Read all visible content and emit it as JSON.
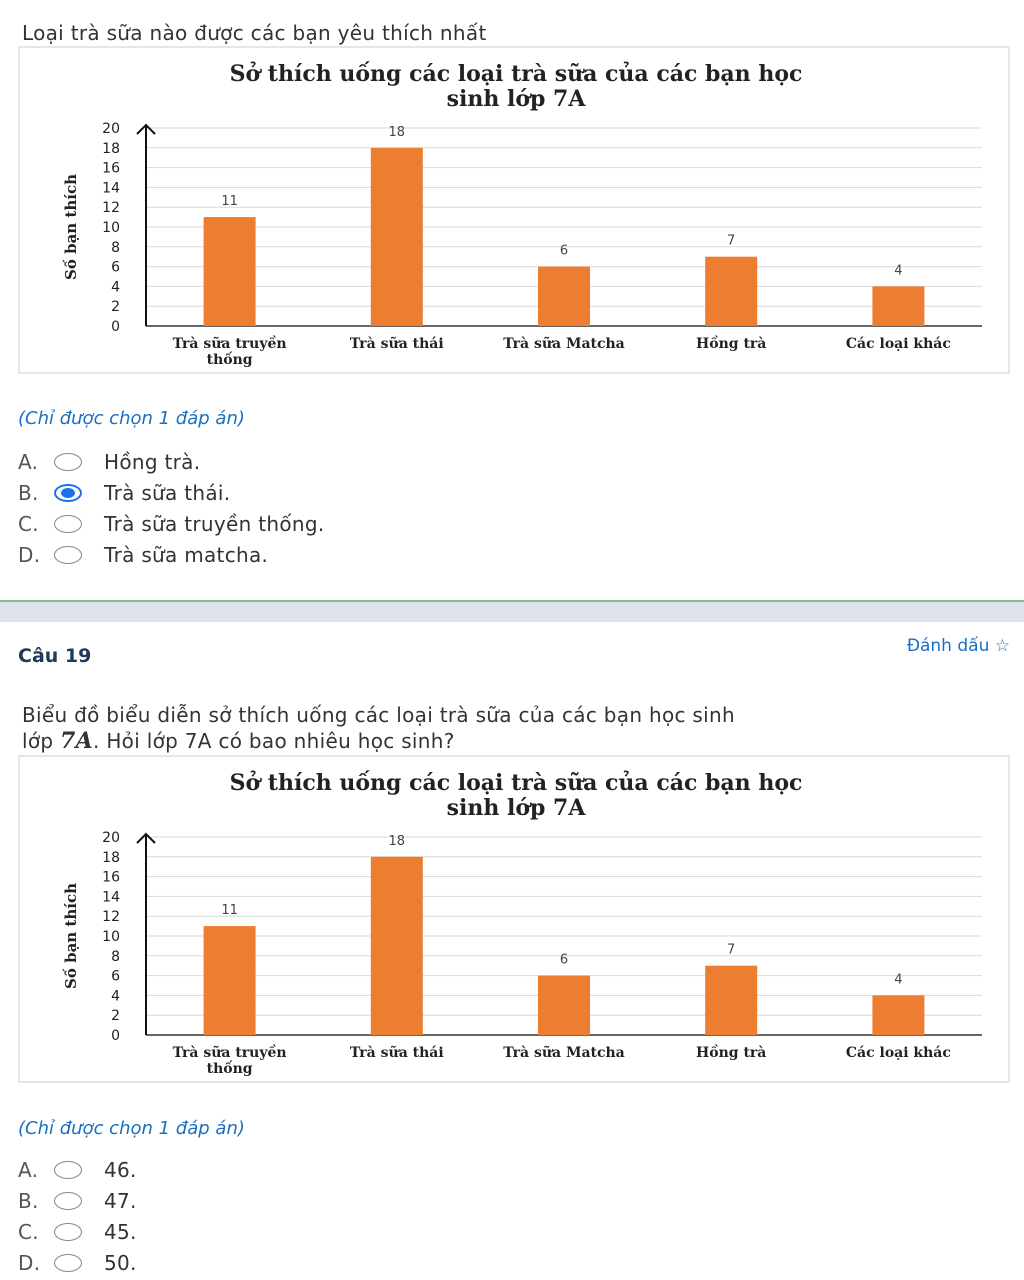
{
  "question_prev": {
    "text": "Loại trà sữa nào được các bạn yêu thích nhất",
    "hint": "(Chỉ được chọn 1 đáp án)",
    "options": [
      {
        "letter": "A.",
        "label": "Hồng trà.",
        "selected": false
      },
      {
        "letter": "B.",
        "label": "Trà sữa thái.",
        "selected": true
      },
      {
        "letter": "C.",
        "label": "Trà sữa truyền thống.",
        "selected": false
      },
      {
        "letter": "D.",
        "label": "Trà sữa matcha.",
        "selected": false
      }
    ]
  },
  "question_19": {
    "number_label": "Câu 19",
    "flag_label": "Đánh dấu",
    "text_part1": "Biểu đồ biểu diễn sở thích uống các loại trà sữa của các bạn học sinh",
    "text_part2_prefix": "lớp ",
    "text_part2_class": "7A",
    "text_part2_suffix": ". Hỏi lớp 7A có bao nhiêu học sinh?",
    "hint": "(Chỉ được chọn 1 đáp án)",
    "options": [
      {
        "letter": "A.",
        "label": "46.",
        "selected": false
      },
      {
        "letter": "B.",
        "label": "47.",
        "selected": false
      },
      {
        "letter": "C.",
        "label": "45.",
        "selected": false
      },
      {
        "letter": "D.",
        "label": "50.",
        "selected": false
      }
    ]
  },
  "chart_data": [
    {
      "type": "bar",
      "title_line1": "Sở thích uống các loại trà sữa của các bạn học",
      "title_line2": "sinh lớp 7A",
      "ylabel": "Số bạn thích",
      "xlabel": "",
      "categories": [
        "Trà sữa truyền thống",
        "Trà sữa thái",
        "Trà sữa Matcha",
        "Hồng trà",
        "Các loại khác"
      ],
      "category_lines": [
        [
          "Trà sữa truyền",
          "thống"
        ],
        [
          "Trà sữa thái"
        ],
        [
          "Trà sữa Matcha"
        ],
        [
          "Hồng trà"
        ],
        [
          "Các loại khác"
        ]
      ],
      "values": [
        11,
        18,
        6,
        7,
        4
      ],
      "ylim": [
        0,
        20
      ],
      "yticks": [
        0,
        2,
        4,
        6,
        8,
        10,
        12,
        14,
        16,
        18,
        20
      ],
      "bar_color": "#ed7d31",
      "grid": true
    },
    {
      "type": "bar",
      "title_line1": "Sở thích uống các loại trà sữa của các bạn học",
      "title_line2": "sinh lớp 7A",
      "ylabel": "Số bạn thích",
      "xlabel": "",
      "categories": [
        "Trà sữa truyền thống",
        "Trà sữa thái",
        "Trà sữa Matcha",
        "Hồng trà",
        "Các loại khác"
      ],
      "category_lines": [
        [
          "Trà sữa truyền",
          "thống"
        ],
        [
          "Trà sữa thái"
        ],
        [
          "Trà sữa Matcha"
        ],
        [
          "Hồng trà"
        ],
        [
          "Các loại khác"
        ]
      ],
      "values": [
        11,
        18,
        6,
        7,
        4
      ],
      "ylim": [
        0,
        20
      ],
      "yticks": [
        0,
        2,
        4,
        6,
        8,
        10,
        12,
        14,
        16,
        18,
        20
      ],
      "bar_color": "#ed7d31",
      "grid": true
    }
  ],
  "colors": {
    "accent": "#1a73e8",
    "hint": "#1a6fc2",
    "bar": "#ed7d31"
  }
}
